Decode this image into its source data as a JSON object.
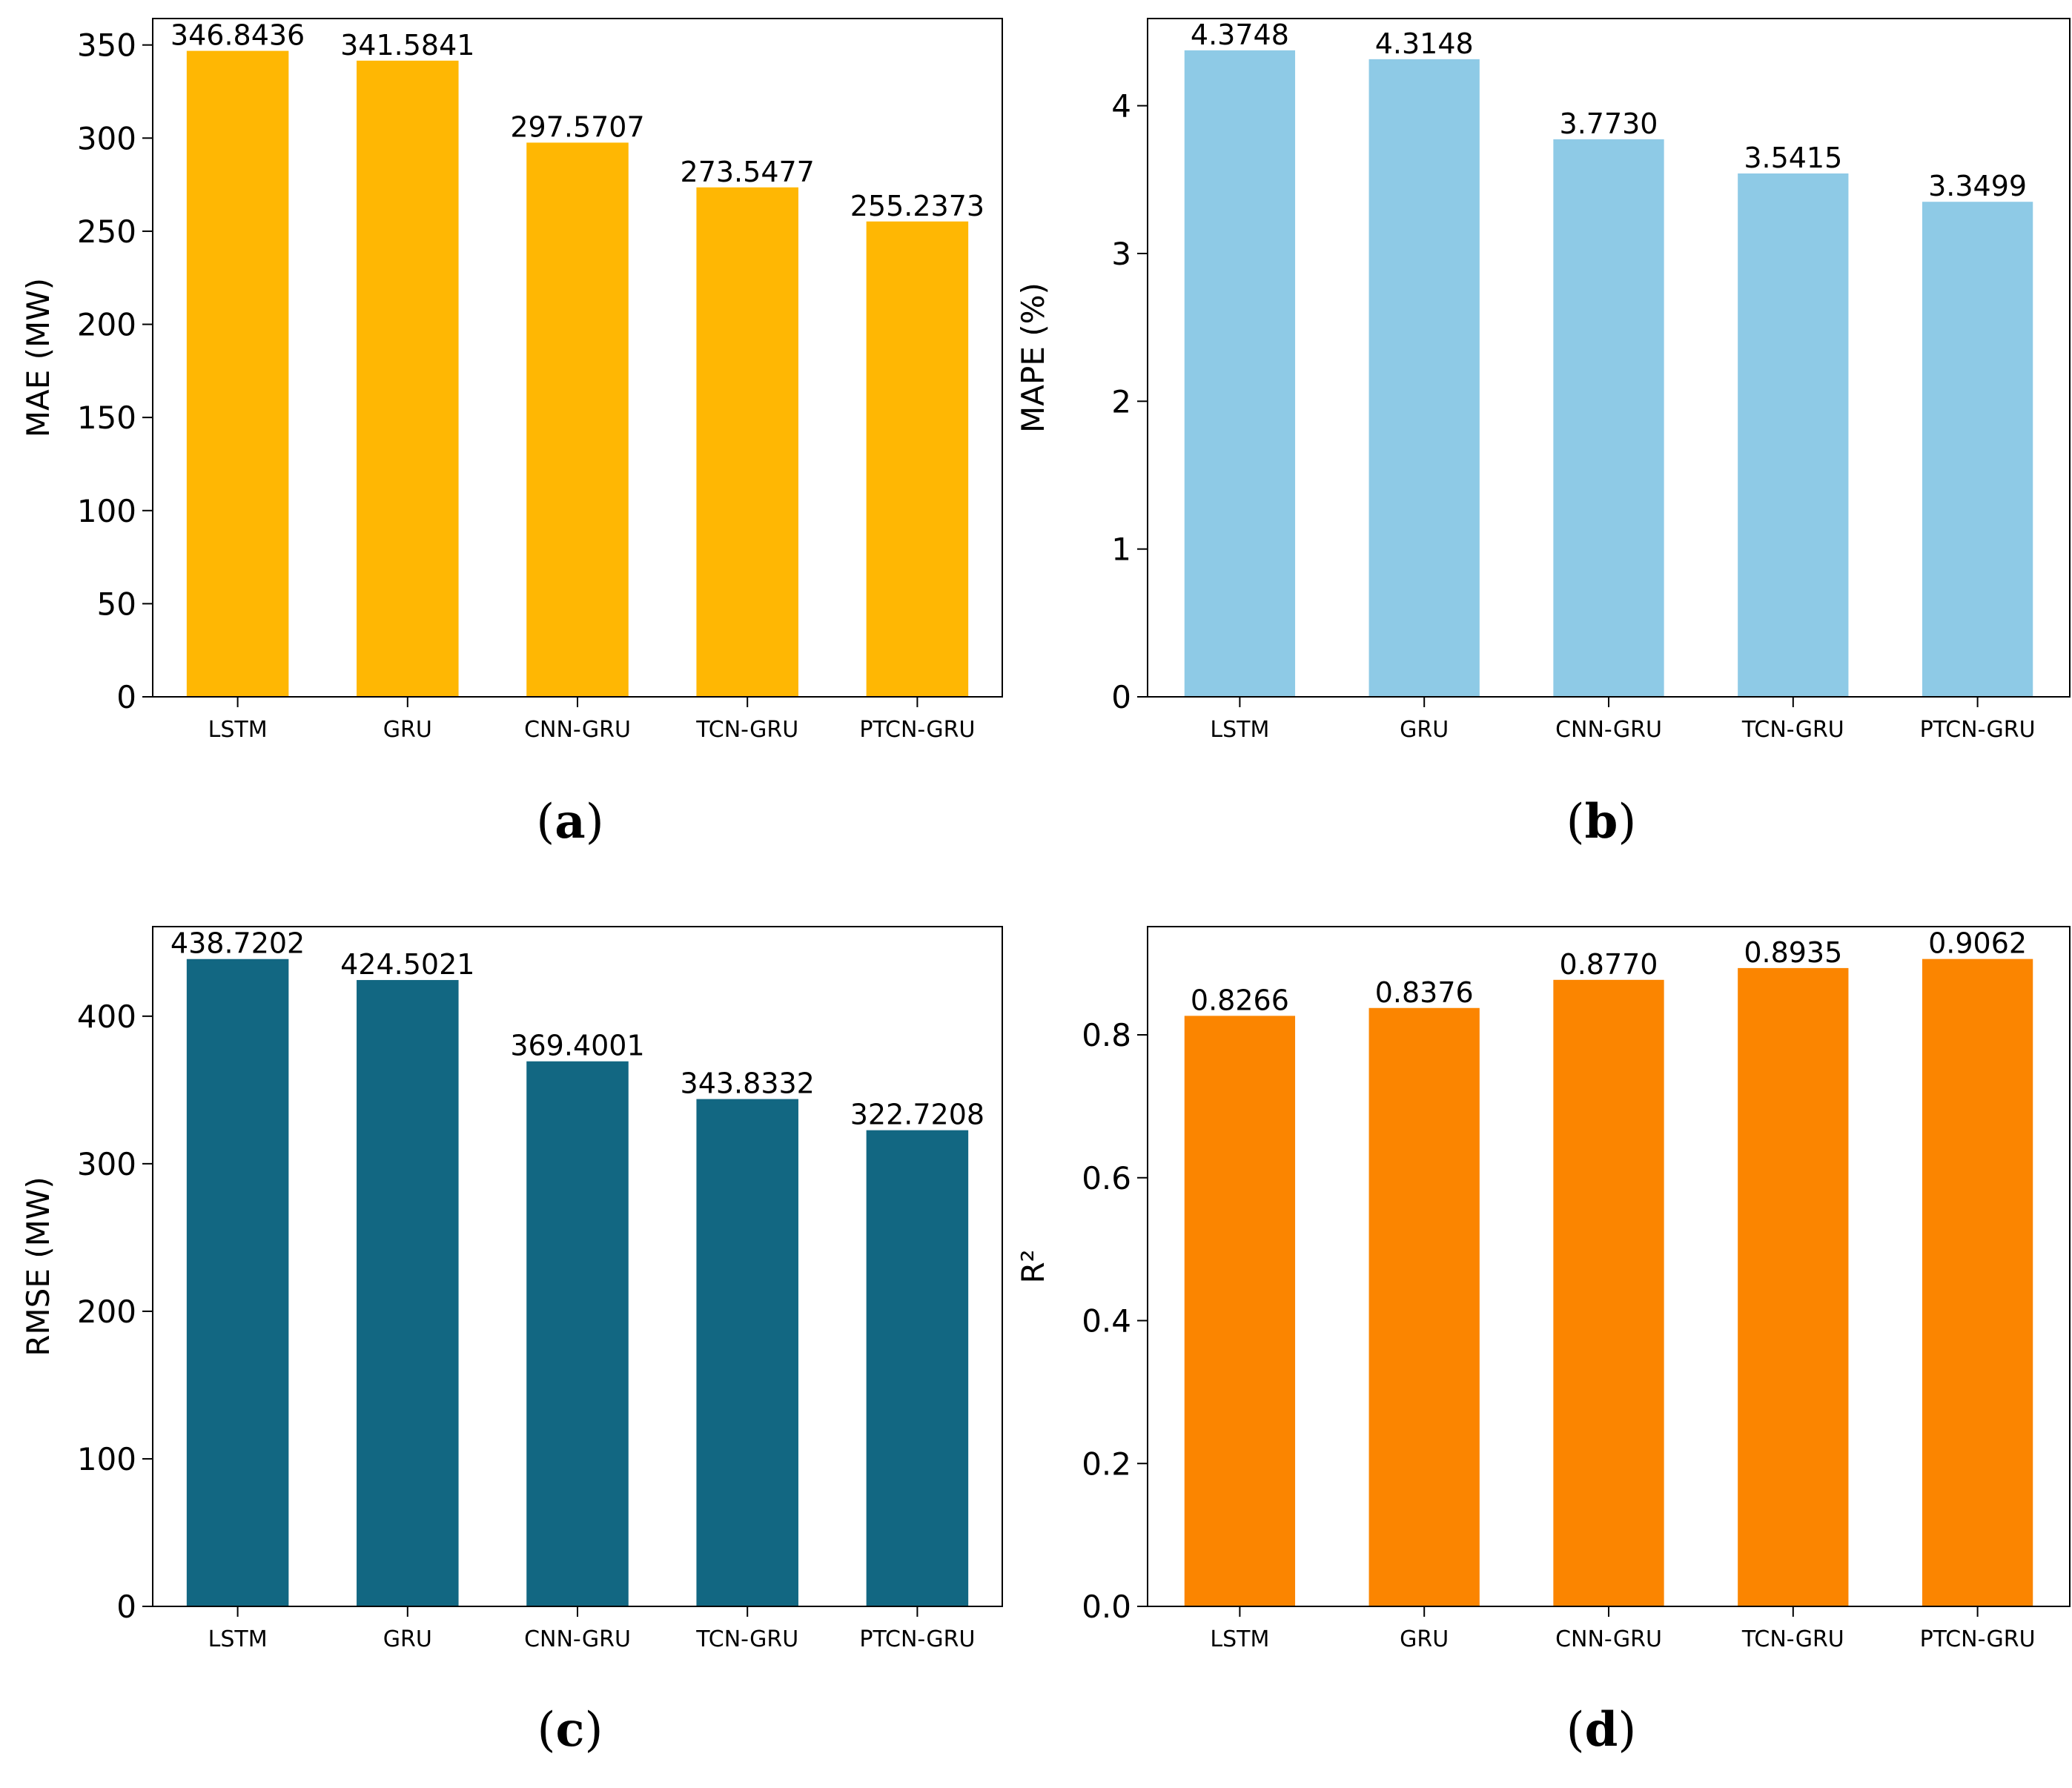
{
  "chart_data": [
    {
      "type": "bar",
      "panel_label": "a",
      "categories": [
        "LSTM",
        "GRU",
        "CNN-GRU",
        "TCN-GRU",
        "PTCN-GRU"
      ],
      "values": [
        346.8436,
        341.5841,
        297.5707,
        273.5477,
        255.2373
      ],
      "value_labels": [
        "346.8436",
        "341.5841",
        "297.5707",
        "273.5477",
        "255.2373"
      ],
      "title": "",
      "xlabel": "",
      "ylabel": "MAE (MW)",
      "ylim": [
        0,
        364.2
      ],
      "yticks": [
        0,
        50,
        100,
        150,
        200,
        250,
        300,
        350
      ],
      "ytick_labels": [
        "0",
        "50",
        "100",
        "150",
        "200",
        "250",
        "300",
        "350"
      ],
      "color": "#FFB703",
      "grid": false,
      "legend": "none"
    },
    {
      "type": "bar",
      "panel_label": "b",
      "categories": [
        "LSTM",
        "GRU",
        "CNN-GRU",
        "TCN-GRU",
        "PTCN-GRU"
      ],
      "values": [
        4.3748,
        4.3148,
        3.773,
        3.5415,
        3.3499
      ],
      "value_labels": [
        "4.3748",
        "4.3148",
        "3.7730",
        "3.5415",
        "3.3499"
      ],
      "title": "",
      "xlabel": "",
      "ylabel": "MAPE (%)",
      "ylim": [
        0,
        4.59
      ],
      "yticks": [
        0,
        1,
        2,
        3,
        4
      ],
      "ytick_labels": [
        "0",
        "1",
        "2",
        "3",
        "4"
      ],
      "color": "#8ECAE6",
      "grid": false,
      "legend": "none"
    },
    {
      "type": "bar",
      "panel_label": "c",
      "categories": [
        "LSTM",
        "GRU",
        "CNN-GRU",
        "TCN-GRU",
        "PTCN-GRU"
      ],
      "values": [
        438.7202,
        424.5021,
        369.4001,
        343.8332,
        322.7208
      ],
      "value_labels": [
        "438.7202",
        "424.5021",
        "369.4001",
        "343.8332",
        "322.7208"
      ],
      "title": "",
      "xlabel": "",
      "ylabel": "RMSE (MW)",
      "ylim": [
        0,
        460.7
      ],
      "yticks": [
        0,
        100,
        200,
        300,
        400
      ],
      "ytick_labels": [
        "0",
        "100",
        "200",
        "300",
        "400"
      ],
      "color": "#126782",
      "grid": false,
      "legend": "none"
    },
    {
      "type": "bar",
      "panel_label": "d",
      "categories": [
        "LSTM",
        "GRU",
        "CNN-GRU",
        "TCN-GRU",
        "PTCN-GRU"
      ],
      "values": [
        0.8266,
        0.8376,
        0.877,
        0.8935,
        0.9062
      ],
      "value_labels": [
        "0.8266",
        "0.8376",
        "0.8770",
        "0.8935",
        "0.9062"
      ],
      "title": "",
      "xlabel": "",
      "ylabel": "R²",
      "ylim": [
        0,
        0.9515
      ],
      "yticks": [
        0,
        0.2,
        0.4,
        0.6,
        0.8
      ],
      "ytick_labels": [
        "0.0",
        "0.2",
        "0.4",
        "0.6",
        "0.8"
      ],
      "color": "#FB8500",
      "grid": false,
      "legend": "none"
    }
  ]
}
